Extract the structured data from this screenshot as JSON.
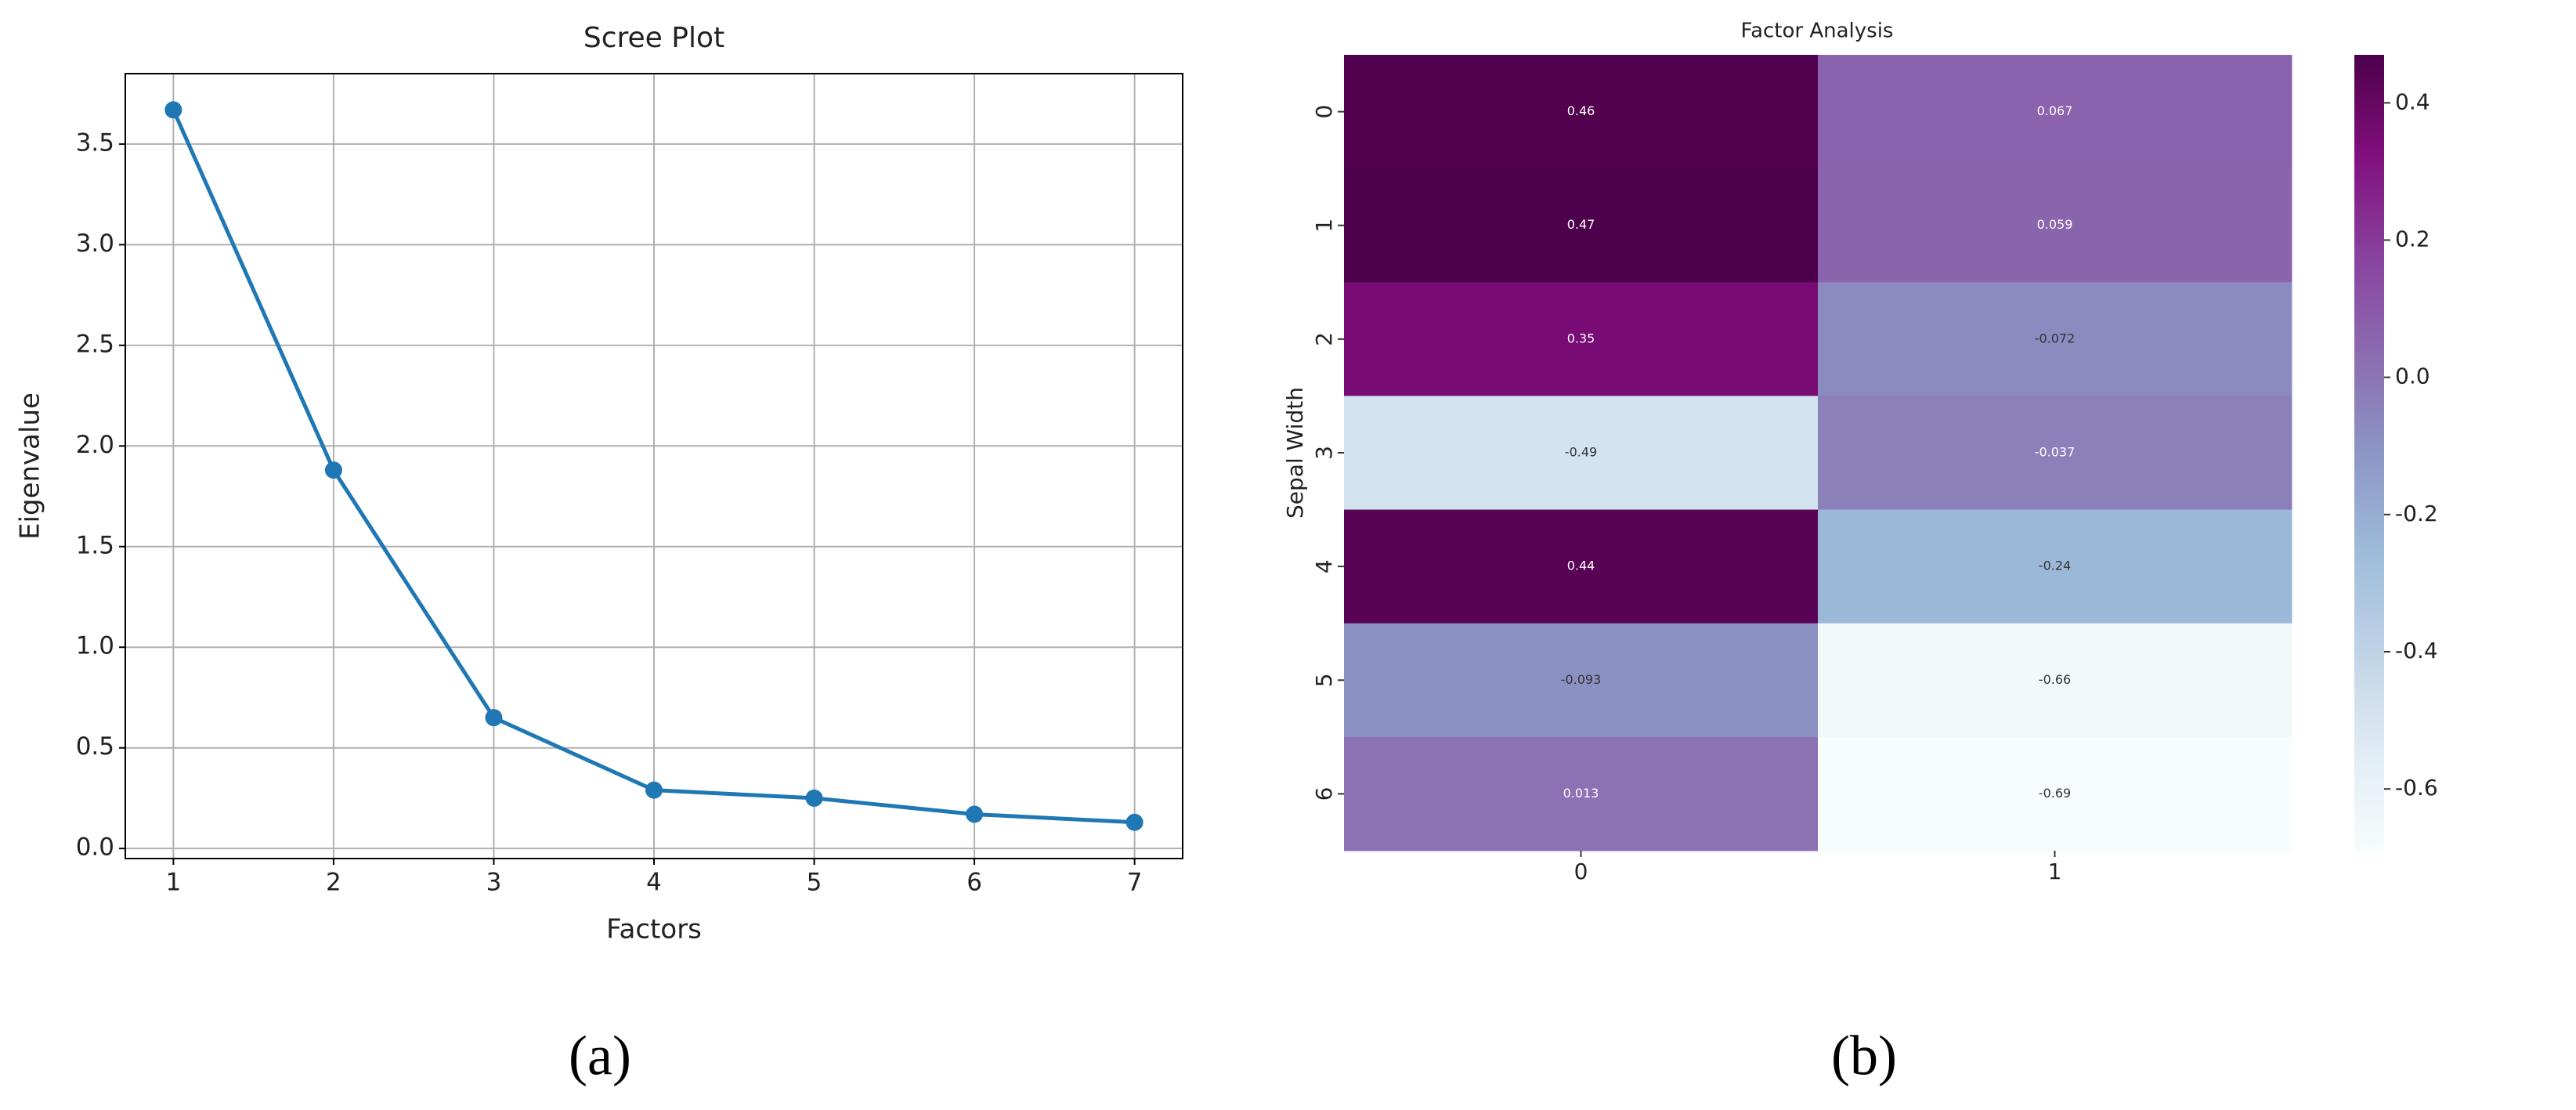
{
  "chart_data": [
    {
      "type": "line",
      "title": "Scree Plot",
      "x_label": "Factors",
      "y_label": "Eigenvalue",
      "caption": "(a)",
      "x": [
        1,
        2,
        3,
        4,
        5,
        6,
        7
      ],
      "values": [
        3.67,
        1.88,
        0.65,
        0.29,
        0.25,
        0.17,
        0.13
      ],
      "color": "#1f77b4",
      "xlim": [
        0.7,
        7.3
      ],
      "xticks": [
        1,
        2,
        3,
        4,
        5,
        6,
        7
      ],
      "ylim": [
        -0.05,
        3.85
      ],
      "yticks": [
        {
          "value": 0,
          "label": "0.0"
        },
        0.5,
        {
          "value": 1,
          "label": "1.0"
        },
        1.5,
        {
          "value": 2,
          "label": "2.0"
        },
        2.5,
        {
          "value": 3,
          "label": "3.0"
        },
        3.5
      ],
      "grid": true
    },
    {
      "type": "heatmap",
      "title": "Factor Analysis",
      "y_label": "Sepal Width",
      "caption": "(b)",
      "x_categories": [
        "0",
        "1"
      ],
      "y_categories": [
        "0",
        "1",
        "2",
        "3",
        "4",
        "5",
        "6"
      ],
      "values": [
        [
          0.46,
          0.067
        ],
        [
          0.47,
          0.059
        ],
        [
          0.35,
          -0.072
        ],
        [
          -0.49,
          -0.037
        ],
        [
          0.44,
          -0.24
        ],
        [
          -0.093,
          -0.66
        ],
        [
          0.013,
          -0.69
        ]
      ],
      "clim": [
        -0.69,
        0.47
      ],
      "colorbar_ticks": [
        -0.6,
        -0.4,
        -0.2,
        {
          "value": 0,
          "label": "0.0"
        },
        0.2,
        0.4
      ],
      "colormap": [
        "#f7fcfd",
        "#e0ecf4",
        "#bfd3e6",
        "#9ebcda",
        "#8c96c6",
        "#8c6bb1",
        "#88419d",
        "#810f7c",
        "#4d004b"
      ]
    }
  ]
}
